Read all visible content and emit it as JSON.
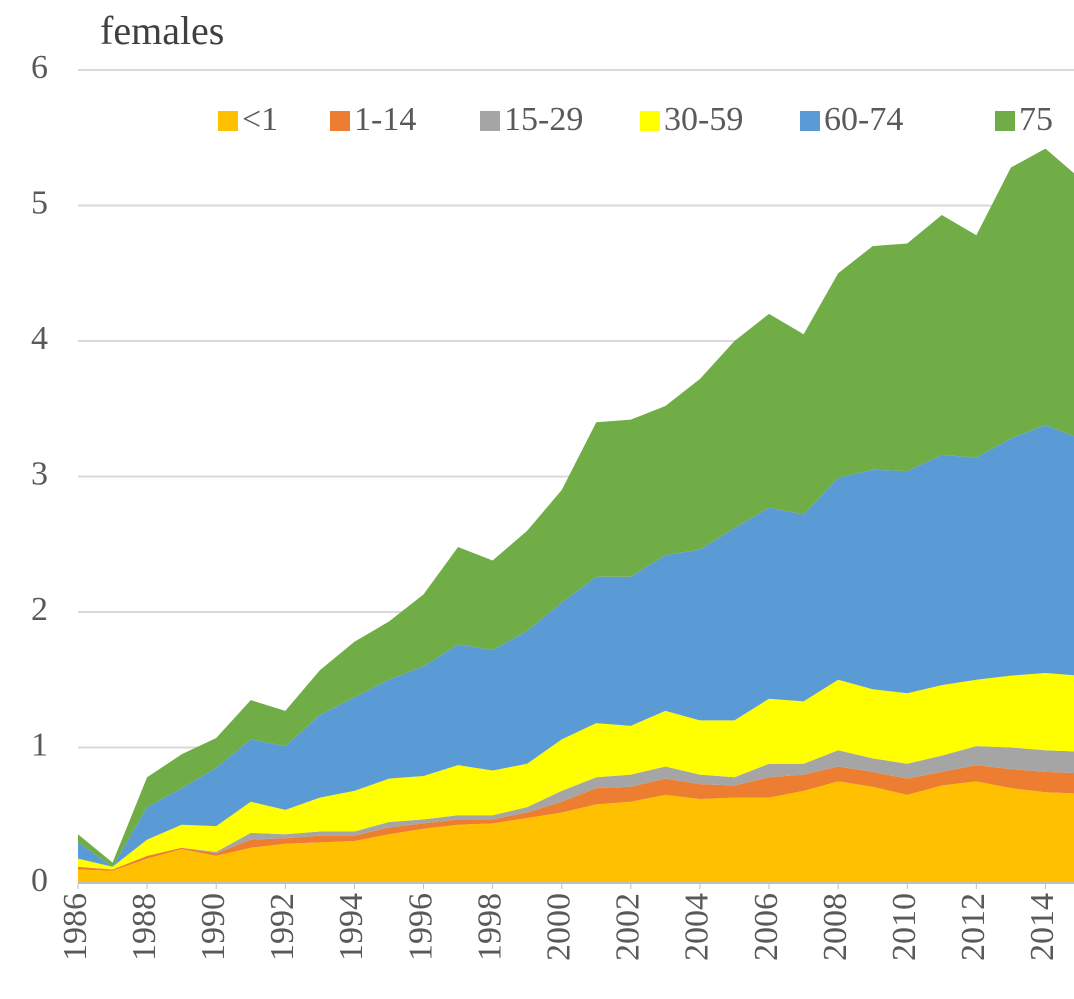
{
  "chart_data": {
    "type": "stacked_area",
    "title": "females",
    "x": [
      1986,
      1987,
      1988,
      1989,
      1990,
      1991,
      1992,
      1993,
      1994,
      1995,
      1996,
      1997,
      1998,
      1999,
      2000,
      2001,
      2002,
      2003,
      2004,
      2005,
      2006,
      2007,
      2008,
      2009,
      2010,
      2011,
      2012,
      2013,
      2014,
      2015
    ],
    "xlim": [
      1986,
      2015
    ],
    "xticks": [
      1986,
      1988,
      1990,
      1992,
      1994,
      1996,
      1998,
      2000,
      2002,
      2004,
      2006,
      2008,
      2010,
      2012,
      2014
    ],
    "ylim": [
      0,
      6
    ],
    "yticks": [
      0,
      1,
      2,
      3,
      4,
      5,
      6
    ],
    "grid": true,
    "legend": "top",
    "series": [
      {
        "name": "<1",
        "color": "#ffc000",
        "values": [
          0.1,
          0.09,
          0.18,
          0.25,
          0.2,
          0.26,
          0.29,
          0.3,
          0.31,
          0.36,
          0.4,
          0.43,
          0.44,
          0.48,
          0.52,
          0.58,
          0.6,
          0.65,
          0.62,
          0.63,
          0.63,
          0.68,
          0.75,
          0.71,
          0.65,
          0.72,
          0.75,
          0.7,
          0.67,
          0.66
        ]
      },
      {
        "name": "1-14",
        "color": "#ed7d31",
        "values": [
          0.02,
          0.01,
          0.02,
          0.01,
          0.02,
          0.06,
          0.04,
          0.05,
          0.04,
          0.05,
          0.04,
          0.04,
          0.03,
          0.04,
          0.08,
          0.12,
          0.11,
          0.12,
          0.11,
          0.09,
          0.15,
          0.12,
          0.11,
          0.11,
          0.12,
          0.1,
          0.12,
          0.14,
          0.15,
          0.15
        ]
      },
      {
        "name": "15-29",
        "color": "#a5a5a5",
        "values": [
          0,
          0,
          0,
          0,
          0.01,
          0.05,
          0.03,
          0.03,
          0.03,
          0.04,
          0.03,
          0.03,
          0.03,
          0.04,
          0.08,
          0.08,
          0.09,
          0.09,
          0.07,
          0.06,
          0.1,
          0.08,
          0.12,
          0.1,
          0.11,
          0.12,
          0.14,
          0.16,
          0.16,
          0.16
        ]
      },
      {
        "name": "30-59",
        "color": "#ffff00",
        "values": [
          0.06,
          0.02,
          0.12,
          0.17,
          0.19,
          0.23,
          0.18,
          0.25,
          0.3,
          0.32,
          0.32,
          0.37,
          0.33,
          0.32,
          0.38,
          0.4,
          0.36,
          0.41,
          0.4,
          0.42,
          0.48,
          0.46,
          0.52,
          0.51,
          0.52,
          0.52,
          0.49,
          0.53,
          0.57,
          0.56
        ]
      },
      {
        "name": "60-74",
        "color": "#5b9bd5",
        "values": [
          0.12,
          0,
          0.24,
          0.27,
          0.43,
          0.46,
          0.47,
          0.61,
          0.69,
          0.73,
          0.81,
          0.89,
          0.89,
          0.98,
          1.01,
          1.08,
          1.1,
          1.15,
          1.26,
          1.42,
          1.41,
          1.38,
          1.49,
          1.62,
          1.64,
          1.7,
          1.64,
          1.75,
          1.83,
          1.75
        ]
      },
      {
        "name": "75",
        "color": "#70ad47",
        "values": [
          0.06,
          0.03,
          0.22,
          0.25,
          0.22,
          0.29,
          0.26,
          0.33,
          0.41,
          0.43,
          0.53,
          0.72,
          0.66,
          0.74,
          0.83,
          1.14,
          1.16,
          1.1,
          1.26,
          1.38,
          1.43,
          1.33,
          1.51,
          1.65,
          1.68,
          1.77,
          1.64,
          2.0,
          2.04,
          1.92
        ]
      }
    ]
  }
}
